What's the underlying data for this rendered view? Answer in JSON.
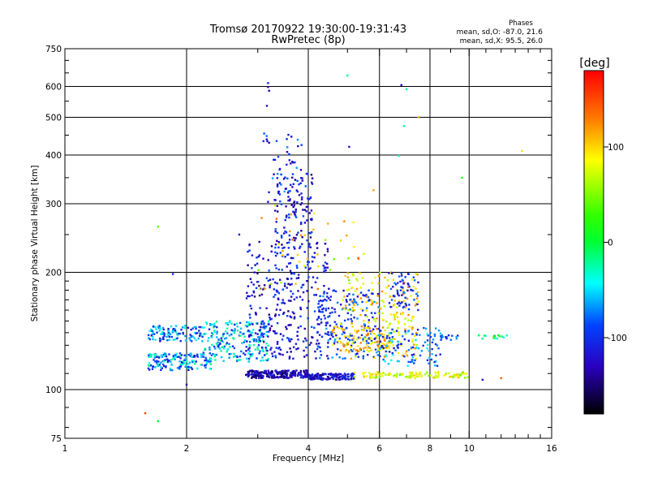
{
  "chart_data": {
    "type": "scatter",
    "title": "Tromsø 20170922 19:30:00-19:31:43",
    "subtitle": "RwPretec (8p)",
    "stats": {
      "heading": "Phases",
      "line_o": "mean, sd,O: -87.0, 21.6",
      "line_x": "mean, sd,X:  95.5, 26.0"
    },
    "xlabel": "Frequency [MHz]",
    "ylabel": "Stationary phase Virtual Height [km]",
    "x_scale": "log",
    "y_scale": "log",
    "xlim": [
      1,
      16
    ],
    "ylim": [
      75,
      750
    ],
    "x_ticks": [
      {
        "value": 1,
        "label": "1"
      },
      {
        "value": 2,
        "label": "2"
      },
      {
        "value": 4,
        "label": "4"
      },
      {
        "value": 6,
        "label": "6"
      },
      {
        "value": 8,
        "label": "8"
      },
      {
        "value": 10,
        "label": "10"
      },
      {
        "value": 16,
        "label": "16"
      }
    ],
    "y_ticks": [
      {
        "value": 75,
        "label": "75"
      },
      {
        "value": 100,
        "label": "100"
      },
      {
        "value": 200,
        "label": "200"
      },
      {
        "value": 300,
        "label": "300"
      },
      {
        "value": 400,
        "label": "400"
      },
      {
        "value": 500,
        "label": "500"
      },
      {
        "value": 600,
        "label": "600"
      },
      {
        "value": 750,
        "label": "750"
      }
    ],
    "x_gridlines": [
      2,
      4,
      6,
      8,
      10
    ],
    "y_gridlines": [
      100,
      200,
      300,
      400,
      500,
      600
    ],
    "colorbar": {
      "label": "[deg]",
      "range": [
        -180,
        180
      ],
      "ticks": [
        {
          "value": 100,
          "label": "100"
        },
        {
          "value": 0,
          "label": "0"
        },
        {
          "value": -100,
          "label": "-100"
        }
      ]
    },
    "clusters": [
      {
        "f": [
          1.6,
          2.3
        ],
        "h": [
          112,
          124
        ],
        "phase": [
          -120,
          -20
        ],
        "n": 160
      },
      {
        "f": [
          1.6,
          2.2
        ],
        "h": [
          133,
          146
        ],
        "phase": [
          -120,
          -30
        ],
        "n": 110
      },
      {
        "f": [
          2.2,
          3.2
        ],
        "h": [
          118,
          150
        ],
        "phase": [
          -110,
          -10
        ],
        "n": 220
      },
      {
        "f": [
          2.8,
          4.0
        ],
        "h": [
          107,
          112
        ],
        "phase": [
          -160,
          -100
        ],
        "n": 220
      },
      {
        "f": [
          4.0,
          5.2
        ],
        "h": [
          106,
          110
        ],
        "phase": [
          -150,
          -90
        ],
        "n": 130
      },
      {
        "f": [
          5.2,
          10.0
        ],
        "h": [
          107,
          111
        ],
        "phase": [
          40,
          110
        ],
        "n": 110
      },
      {
        "f": [
          2.8,
          4.5
        ],
        "h": [
          120,
          240
        ],
        "phase": [
          -150,
          -80
        ],
        "n": 340
      },
      {
        "f": [
          3.3,
          4.1
        ],
        "h": [
          240,
          360
        ],
        "phase": [
          -150,
          -80
        ],
        "n": 110
      },
      {
        "f": [
          3.1,
          3.9
        ],
        "h": [
          300,
          460
        ],
        "phase": [
          -140,
          -60
        ],
        "n": 45
      },
      {
        "f": [
          4.2,
          6.0
        ],
        "h": [
          120,
          180
        ],
        "phase": [
          -130,
          -60
        ],
        "n": 190
      },
      {
        "f": [
          4.8,
          7.5
        ],
        "h": [
          120,
          200
        ],
        "phase": [
          60,
          130
        ],
        "n": 220
      },
      {
        "f": [
          4.5,
          6.5
        ],
        "h": [
          125,
          145
        ],
        "phase": [
          80,
          140
        ],
        "n": 80
      },
      {
        "f": [
          6.0,
          8.5
        ],
        "h": [
          115,
          145
        ],
        "phase": [
          -120,
          -40
        ],
        "n": 110
      },
      {
        "f": [
          6.3,
          7.5
        ],
        "h": [
          160,
          200
        ],
        "phase": [
          -130,
          -70
        ],
        "n": 60
      },
      {
        "f": [
          8.5,
          9.5
        ],
        "h": [
          134,
          138
        ],
        "phase": [
          -120,
          -60
        ],
        "n": 14
      },
      {
        "f": [
          10.5,
          12.5
        ],
        "h": [
          135,
          138
        ],
        "phase": [
          -100,
          30
        ],
        "n": 16
      },
      {
        "f": [
          3.0,
          5.5
        ],
        "h": [
          180,
          300
        ],
        "phase": [
          40,
          140
        ],
        "n": 40
      }
    ],
    "isolated_points": [
      {
        "f": 3.18,
        "h": 612,
        "phase": -110
      },
      {
        "f": 3.18,
        "h": 598,
        "phase": -140
      },
      {
        "f": 3.2,
        "h": 585,
        "phase": -130
      },
      {
        "f": 3.16,
        "h": 535,
        "phase": -120
      },
      {
        "f": 5.0,
        "h": 640,
        "phase": -20
      },
      {
        "f": 5.05,
        "h": 420,
        "phase": -120
      },
      {
        "f": 6.8,
        "h": 605,
        "phase": -130
      },
      {
        "f": 7.0,
        "h": 590,
        "phase": -20
      },
      {
        "f": 6.9,
        "h": 475,
        "phase": -20
      },
      {
        "f": 6.7,
        "h": 398,
        "phase": -30
      },
      {
        "f": 7.5,
        "h": 500,
        "phase": 110
      },
      {
        "f": 9.6,
        "h": 350,
        "phase": 20
      },
      {
        "f": 13.5,
        "h": 410,
        "phase": 95
      },
      {
        "f": 1.7,
        "h": 262,
        "phase": 40
      },
      {
        "f": 1.85,
        "h": 198,
        "phase": -110
      },
      {
        "f": 1.58,
        "h": 87,
        "phase": 150
      },
      {
        "f": 1.7,
        "h": 83,
        "phase": 0
      },
      {
        "f": 2.0,
        "h": 103,
        "phase": -130
      },
      {
        "f": 10.8,
        "h": 106,
        "phase": -130
      },
      {
        "f": 12.0,
        "h": 107,
        "phase": 140
      },
      {
        "f": 2.7,
        "h": 250,
        "phase": -120
      },
      {
        "f": 3.6,
        "h": 255,
        "phase": 120
      },
      {
        "f": 5.8,
        "h": 325,
        "phase": 120
      }
    ]
  }
}
